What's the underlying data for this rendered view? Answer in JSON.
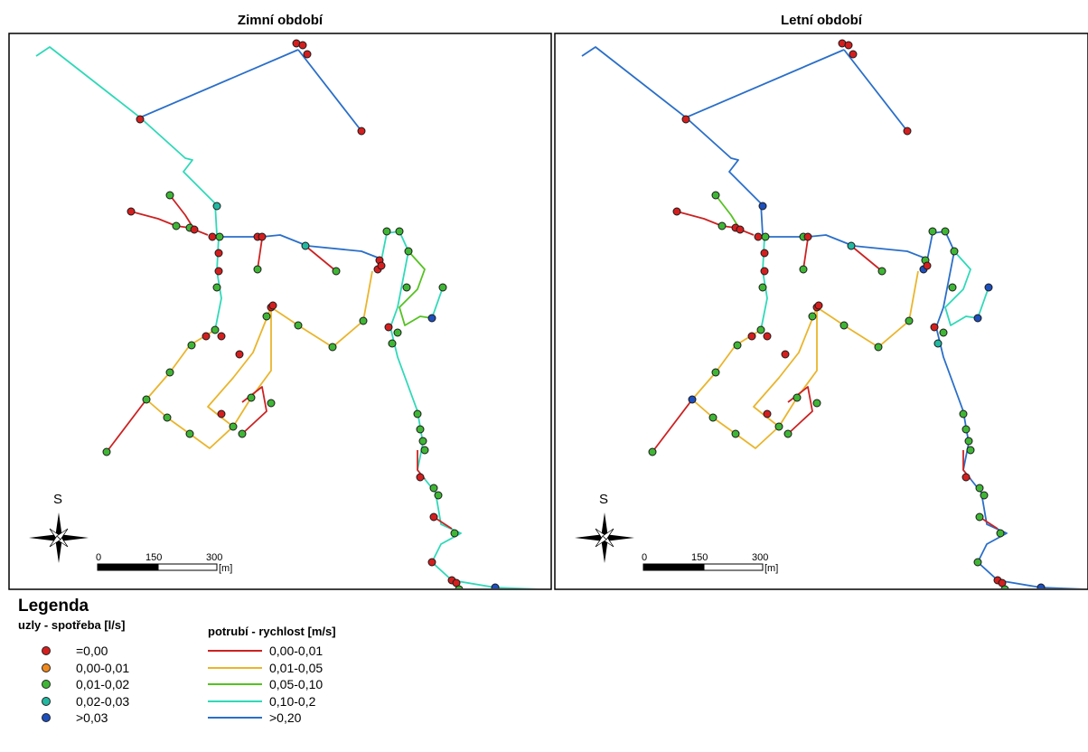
{
  "panels": {
    "left_title": "Zimní období",
    "right_title": "Letní období"
  },
  "map": {
    "compass_letter": "S",
    "scale_labels": [
      "0",
      "150",
      "300"
    ],
    "scale_unit": "[m]"
  },
  "legend": {
    "title": "Legenda",
    "nodes_title": "uzly - spotřeba [l/s]",
    "pipes_title": "potrubí - rychlost [m/s]",
    "nodes": [
      {
        "label": "=0,00",
        "color": "#d41f1f"
      },
      {
        "label": "0,00-0,01",
        "color": "#f08a1c"
      },
      {
        "label": "0,01-0,02",
        "color": "#3fb635"
      },
      {
        "label": "0,02-0,03",
        "color": "#22b8a1"
      },
      {
        "label": ">0,03",
        "color": "#1d4fbd"
      }
    ],
    "pipes": [
      {
        "label": "0,00-0,01",
        "color": "#cc2222"
      },
      {
        "label": "0,01-0,05",
        "color": "#eab52c"
      },
      {
        "label": "0,05-0,10",
        "color": "#55c221"
      },
      {
        "label": "0,10-0,2",
        "color": "#2fd9b8"
      },
      {
        "label": ">0,20",
        "color": "#2a6fc9"
      }
    ]
  }
}
